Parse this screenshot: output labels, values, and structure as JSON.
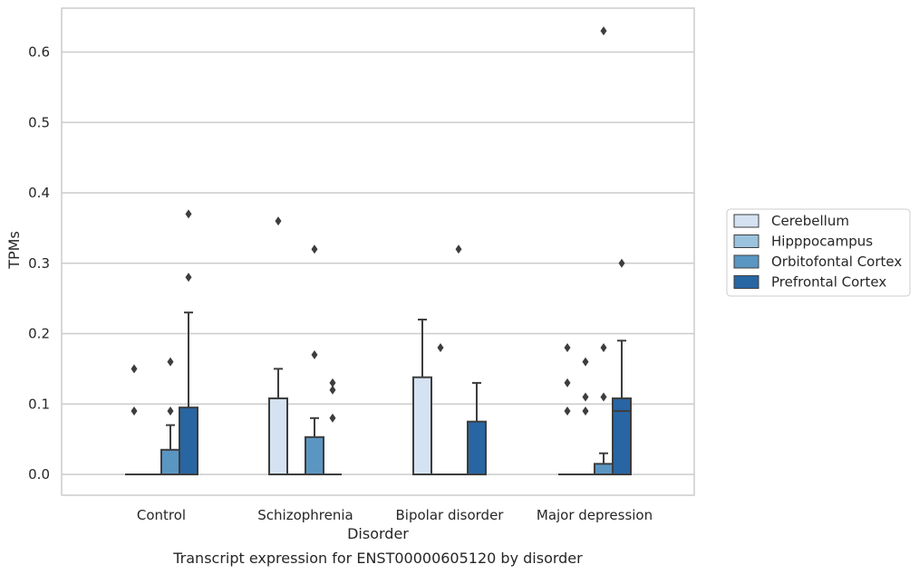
{
  "chart_data": {
    "type": "box",
    "title": "",
    "caption": "Transcript expression for ENST00000605120 by disorder",
    "xlabel": "Disorder",
    "ylabel": "TPMs",
    "ylim": [
      -0.03,
      0.66
    ],
    "yticks": [
      0.0,
      0.1,
      0.2,
      0.3,
      0.4,
      0.5,
      0.6
    ],
    "ytick_labels": [
      "0.0",
      "0.1",
      "0.2",
      "0.3",
      "0.4",
      "0.5",
      "0.6"
    ],
    "grid": "horizontal",
    "legend_position": "right",
    "categories": [
      "Control",
      "Schizophrenia",
      "Bipolar disorder",
      "Major depression"
    ],
    "series": [
      {
        "name": "Cerebellum",
        "color": "#d4e2f1",
        "boxes": [
          {
            "q1": 0.0,
            "median": 0.0,
            "q3": 0.0,
            "whisker_low": 0.0,
            "whisker_high": 0.0,
            "outliers": [
              0.09,
              0.15
            ]
          },
          {
            "q1": 0.0,
            "median": 0.0,
            "q3": 0.108,
            "whisker_low": 0.0,
            "whisker_high": 0.15,
            "outliers": [
              0.36
            ]
          },
          {
            "q1": 0.0,
            "median": 0.0,
            "q3": 0.138,
            "whisker_low": 0.0,
            "whisker_high": 0.22,
            "outliers": []
          },
          {
            "q1": 0.0,
            "median": 0.0,
            "q3": 0.0,
            "whisker_low": 0.0,
            "whisker_high": 0.0,
            "outliers": [
              0.09,
              0.13,
              0.18
            ]
          }
        ]
      },
      {
        "name": "Hipppocampus",
        "color": "#9cc3de",
        "boxes": [
          {
            "q1": 0.0,
            "median": 0.0,
            "q3": 0.0,
            "whisker_low": 0.0,
            "whisker_high": 0.0,
            "outliers": []
          },
          {
            "q1": 0.0,
            "median": 0.0,
            "q3": 0.0,
            "whisker_low": 0.0,
            "whisker_high": 0.0,
            "outliers": []
          },
          {
            "q1": 0.0,
            "median": 0.0,
            "q3": 0.0,
            "whisker_low": 0.0,
            "whisker_high": 0.0,
            "outliers": [
              0.18
            ]
          },
          {
            "q1": 0.0,
            "median": 0.0,
            "q3": 0.0,
            "whisker_low": 0.0,
            "whisker_high": 0.0,
            "outliers": [
              0.09,
              0.11,
              0.16
            ]
          }
        ]
      },
      {
        "name": "Orbitofontal Cortex",
        "color": "#5a96c2",
        "boxes": [
          {
            "q1": 0.0,
            "median": 0.0,
            "q3": 0.035,
            "whisker_low": 0.0,
            "whisker_high": 0.07,
            "outliers": [
              0.09,
              0.16
            ]
          },
          {
            "q1": 0.0,
            "median": 0.0,
            "q3": 0.053,
            "whisker_low": 0.0,
            "whisker_high": 0.08,
            "outliers": [
              0.17,
              0.32
            ]
          },
          {
            "q1": 0.0,
            "median": 0.0,
            "q3": 0.0,
            "whisker_low": 0.0,
            "whisker_high": 0.0,
            "outliers": [
              0.32
            ]
          },
          {
            "q1": 0.0,
            "median": 0.0,
            "q3": 0.015,
            "whisker_low": 0.0,
            "whisker_high": 0.03,
            "outliers": [
              0.11,
              0.18,
              0.63
            ]
          }
        ]
      },
      {
        "name": "Prefrontal Cortex",
        "color": "#2865a3",
        "boxes": [
          {
            "q1": 0.0,
            "median": 0.0,
            "q3": 0.095,
            "whisker_low": 0.0,
            "whisker_high": 0.23,
            "outliers": [
              0.28,
              0.37
            ]
          },
          {
            "q1": 0.0,
            "median": 0.0,
            "q3": 0.0,
            "whisker_low": 0.0,
            "whisker_high": 0.0,
            "outliers": [
              0.08,
              0.12,
              0.13
            ]
          },
          {
            "q1": 0.0,
            "median": 0.0,
            "q3": 0.075,
            "whisker_low": 0.0,
            "whisker_high": 0.13,
            "outliers": []
          },
          {
            "q1": 0.0,
            "median": 0.09,
            "q3": 0.108,
            "whisker_low": 0.0,
            "whisker_high": 0.19,
            "outliers": [
              0.3
            ]
          }
        ]
      }
    ]
  }
}
